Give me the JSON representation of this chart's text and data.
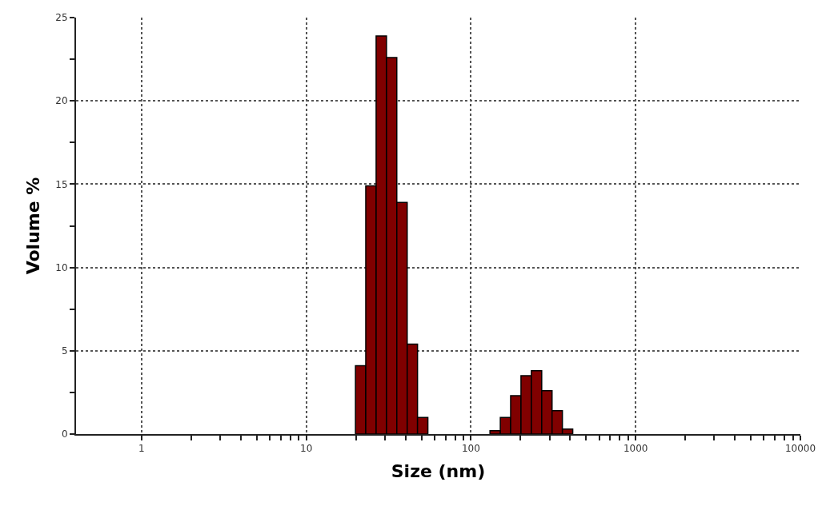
{
  "chart_data": {
    "type": "histogram",
    "xlabel": "Size (nm)",
    "ylabel": "Volume %",
    "log": "x",
    "color": "#800000",
    "bins": [
      19.89,
      22.97,
      26.55,
      30.69,
      35.45,
      40.99,
      47.36,
      54.73,
      63.23,
      73.09,
      84.47,
      97.62,
      112.8,
      130.4,
      150.7,
      174.1,
      201.2,
      232.6,
      268.8,
      310.6,
      358.9,
      414.8
    ],
    "values": [
      4.1,
      14.9,
      23.9,
      22.6,
      13.9,
      5.4,
      1.0,
      0,
      0,
      0,
      0,
      0,
      0,
      0.2,
      1.0,
      2.3,
      3.5,
      3.8,
      2.6,
      1.4,
      0.3
    ],
    "xlim": [
      0.4,
      10000
    ],
    "xticks": [
      1,
      {
        "value": 2,
        "label": null
      },
      {
        "value": 3,
        "label": null
      },
      {
        "value": 4,
        "label": null
      },
      {
        "value": 5,
        "label": null
      },
      {
        "value": 6,
        "label": null
      },
      {
        "value": 7,
        "label": null
      },
      {
        "value": 8,
        "label": null
      },
      {
        "value": 9,
        "label": null
      },
      10,
      {
        "value": 20,
        "label": null
      },
      {
        "value": 30,
        "label": null
      },
      {
        "value": 40,
        "label": null
      },
      {
        "value": 50,
        "label": null
      },
      {
        "value": 60,
        "label": null
      },
      {
        "value": 70,
        "label": null
      },
      {
        "value": 80,
        "label": null
      },
      {
        "value": 90,
        "label": null
      },
      100,
      {
        "value": 200,
        "label": null
      },
      {
        "value": 300,
        "label": null
      },
      {
        "value": 400,
        "label": null
      },
      {
        "value": 500,
        "label": null
      },
      {
        "value": 600,
        "label": null
      },
      {
        "value": 700,
        "label": null
      },
      {
        "value": 800,
        "label": null
      },
      {
        "value": 900,
        "label": null
      },
      1000,
      {
        "value": 2000,
        "label": null
      },
      {
        "value": 3000,
        "label": null
      },
      {
        "value": 4000,
        "label": null
      },
      {
        "value": 5000,
        "label": null
      },
      {
        "value": 6000,
        "label": null
      },
      {
        "value": 7000,
        "label": null
      },
      {
        "value": 8000,
        "label": null
      },
      {
        "value": 9000,
        "label": null
      },
      10000
    ],
    "ylim": [
      0,
      25
    ],
    "yticks": [
      0,
      {
        "value": 2.5,
        "label": null
      },
      5,
      {
        "value": 7.5,
        "label": null
      },
      10,
      {
        "value": 12.5,
        "label": null
      },
      15,
      {
        "value": 17.5,
        "label": null
      },
      20,
      {
        "value": 22.5,
        "label": null
      },
      25
    ],
    "grid": true
  }
}
